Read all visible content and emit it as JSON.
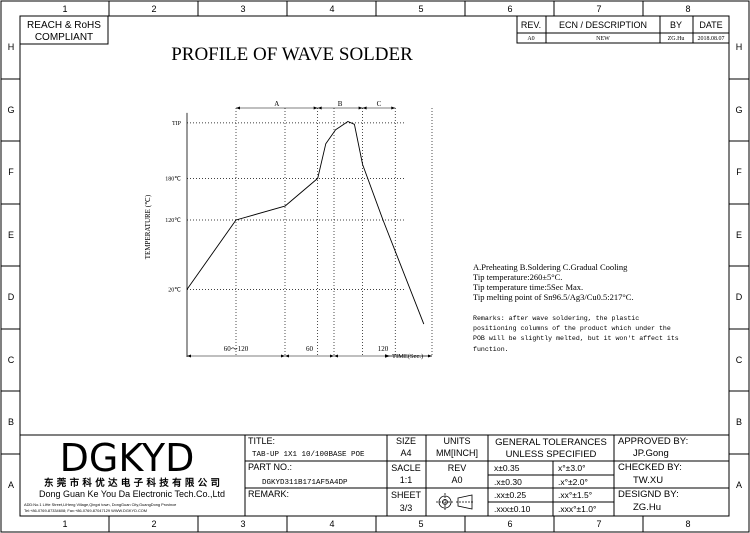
{
  "frame": {
    "columns": [
      "1",
      "2",
      "3",
      "4",
      "5",
      "6",
      "7",
      "8"
    ],
    "rows": [
      "H",
      "G",
      "F",
      "E",
      "D",
      "C",
      "B",
      "A"
    ]
  },
  "compliance": {
    "line1": "REACH & RoHS",
    "line2": "COMPLIANT"
  },
  "revision": {
    "headers": {
      "rev": "REV.",
      "ecn": "ECN / DESCRIPTION",
      "by": "BY",
      "date": "DATE"
    },
    "row": {
      "rev": "A0",
      "ecn": "NEW",
      "by": "ZG.Hu",
      "date": "2018.08.07"
    }
  },
  "title": "PROFILE OF WAVE SOLDER",
  "chart_data": {
    "type": "line",
    "x_segments": [
      {
        "label": "60～120",
        "span": [
          0,
          120
        ]
      },
      {
        "label": "60",
        "span": [
          120,
          180
        ]
      },
      {
        "label": "120",
        "span": [
          180,
          300
        ]
      }
    ],
    "zones": [
      {
        "label": "A",
        "span": [
          60,
          160
        ]
      },
      {
        "label": "B",
        "span": [
          160,
          215
        ]
      },
      {
        "label": "C",
        "span": [
          215,
          255
        ]
      }
    ],
    "y_ticks": [
      {
        "label": "20℃",
        "value": 20
      },
      {
        "label": "120℃",
        "value": 120
      },
      {
        "label": "180℃",
        "value": 180
      },
      {
        "label": "TIP",
        "value": 260
      }
    ],
    "ylabel": "TEMPERATURE (℃)",
    "xlabel": "TIME(Sec.)",
    "x": [
      0,
      60,
      120,
      160,
      170,
      182,
      197,
      205,
      215,
      240,
      290
    ],
    "y": [
      20,
      120,
      140,
      180,
      230,
      250,
      262,
      258,
      200,
      120,
      -30
    ],
    "xlim": [
      0,
      300
    ],
    "ylim": [
      -40,
      280
    ]
  },
  "notes": {
    "lines": [
      "A.Preheating  B.Soldering  C.Gradual Cooling",
      "Tip temperature:260±5°C.",
      "Tip temperature time:5Sec Max.",
      "Tip melting point of Sn96.5/Ag3/Cu0.5:217°C."
    ],
    "remarks": [
      "Remarks: after wave soldering, the plastic",
      "positioning columns of the product  which under the",
      "POB will be slightly melted, but it won't affect its",
      "function."
    ]
  },
  "title_block": {
    "logo": "DGKYD",
    "company_cn": "东 莞 市 科 优 达 电 子 科 技 有 限 公 司",
    "company_en": "Dong Guan Ke You Da Electronic Tech.Co.,Ltd",
    "address1": "ADD:No.1 LiHe Street,LiHeng Village,Qingxi town, DongGuan City,GuangDong Province",
    "address2": "Tel:+86-0769-87334608; Fax:+86-0769-87047129  WWW.DGKYD.COM",
    "title_label": "TITLE:",
    "title_value": "TAB-UP 1X1 10/100BASE POE",
    "part_label": "PART NO.:",
    "part_value": "DGKYD311B171AF5A4DP",
    "remark_label": "REMARK:",
    "size_label": "SIZE",
    "size_value": "A4",
    "units_label": "UNITS",
    "units_value": "MM[INCH]",
    "scale_label": "SACLE",
    "scale_value": "1:1",
    "rev_label": "REV",
    "rev_value": "A0",
    "sheet_label": "SHEET",
    "sheet_value": "3/3",
    "tol_title1": "GENERAL TOLERANCES",
    "tol_title2": "UNLESS SPECIFIED",
    "tolerances": [
      [
        "x±0.35",
        "x°±3.0°"
      ],
      [
        ".x±0.30",
        ".x°±2.0°"
      ],
      [
        ".xx±0.25",
        ".xx°±1.5°"
      ],
      [
        ".xxx±0.10",
        ".xxx°±1.0°"
      ]
    ],
    "approved_label": "APPROVED BY:",
    "approved_value": "JP.Gong",
    "checked_label": "CHECKED BY:",
    "checked_value": "TW.XU",
    "designed_label": "DESIGND BY:",
    "designed_value": "ZG.Hu"
  }
}
